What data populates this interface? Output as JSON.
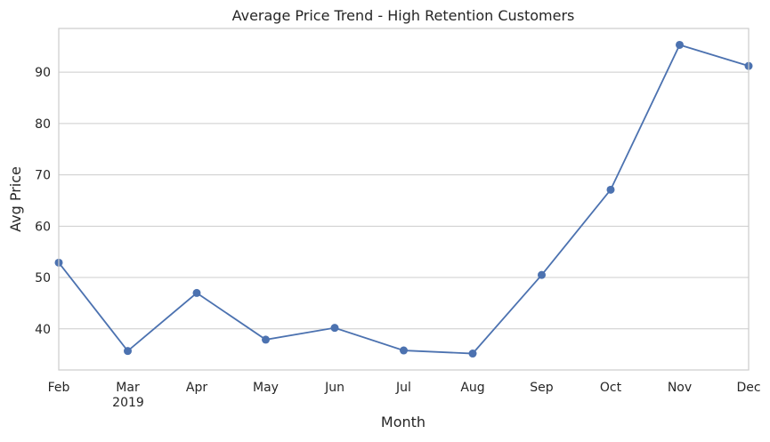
{
  "chart_data": {
    "type": "line",
    "title": "Average Price Trend - High Retention Customers",
    "xlabel": "Month",
    "ylabel": "Avg Price",
    "categories": [
      "Feb",
      "Mar",
      "Apr",
      "May",
      "Jun",
      "Jul",
      "Aug",
      "Sep",
      "Oct",
      "Nov",
      "Dec"
    ],
    "year_label": "2019",
    "series": [
      {
        "name": "Avg Price",
        "values": [
          52.9,
          35.7,
          47.0,
          37.9,
          40.2,
          35.8,
          35.2,
          50.5,
          67.1,
          95.3,
          91.2
        ],
        "color": "#4c72b0",
        "marker": "circle"
      }
    ],
    "ylim": [
      32.0,
      98.5
    ],
    "yticks": [
      40,
      50,
      60,
      70,
      80,
      90
    ],
    "grid": true,
    "grid_axis": "y"
  }
}
